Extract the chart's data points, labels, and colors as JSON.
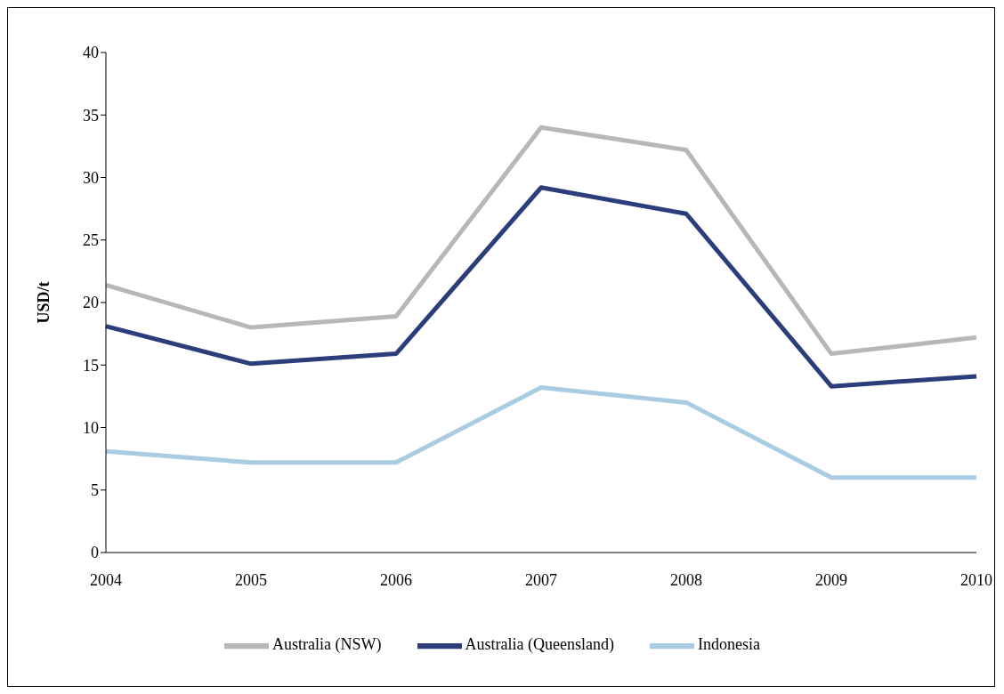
{
  "chart_data": {
    "type": "line",
    "ylabel": "USD/t",
    "categories": [
      "2004",
      "2005",
      "2006",
      "2007",
      "2008",
      "2009",
      "2010"
    ],
    "series": [
      {
        "name": "Indonesia",
        "color": "#a9cce3",
        "values": [
          8.1,
          7.2,
          7.2,
          13.2,
          12.0,
          6.0,
          6.0
        ]
      },
      {
        "name": "Australia (Queensland)",
        "color": "#2b3d7a",
        "values": [
          18.1,
          15.1,
          15.9,
          29.2,
          27.1,
          13.3,
          14.1
        ]
      },
      {
        "name": "Australia (NSW)",
        "color": "#b7b7b7",
        "values": [
          21.4,
          18.0,
          18.9,
          34.0,
          32.2,
          15.9,
          17.2
        ]
      }
    ],
    "ylim": [
      0,
      40
    ],
    "yticks": [
      0,
      5,
      10,
      15,
      20,
      25,
      30,
      35,
      40
    ],
    "grid": false,
    "legend": "bottom",
    "marker": "none",
    "line_style": "solid"
  }
}
